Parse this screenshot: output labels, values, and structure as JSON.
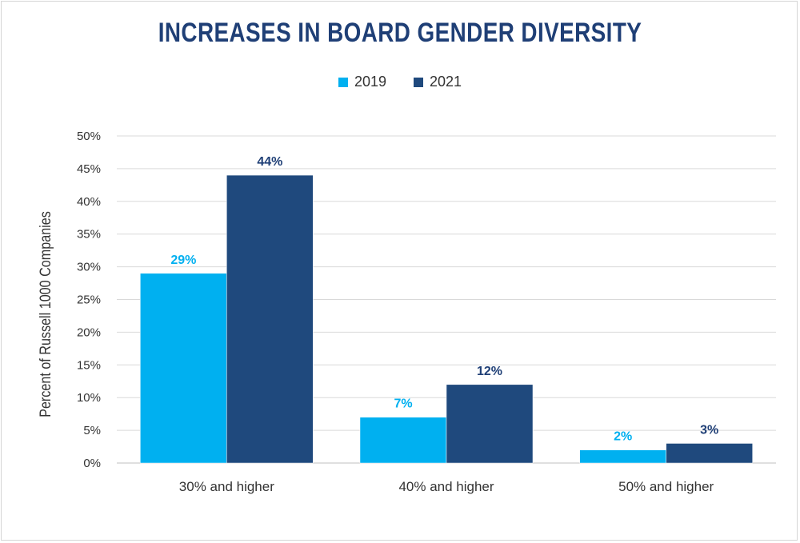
{
  "chart_data": {
    "type": "bar",
    "title": "INCREASES IN BOARD GENDER DIVERSITY",
    "ylabel": "Percent of Russell 1000 Companies",
    "xlabel": "",
    "categories": [
      "30% and higher",
      "40% and higher",
      "50% and higher"
    ],
    "series": [
      {
        "name": "2019",
        "values": [
          29,
          7,
          2
        ],
        "labels": [
          "29%",
          "7%",
          "2%"
        ],
        "color": "#00b0f0"
      },
      {
        "name": "2021",
        "values": [
          44,
          12,
          3
        ],
        "labels": [
          "44%",
          "12%",
          "3%"
        ],
        "color": "#1f497d"
      }
    ],
    "ylim": [
      0,
      50
    ],
    "yticks": [
      0,
      5,
      10,
      15,
      20,
      25,
      30,
      35,
      40,
      45,
      50
    ],
    "ytick_labels": [
      "0%",
      "5%",
      "10%",
      "15%",
      "20%",
      "25%",
      "30%",
      "35%",
      "40%",
      "45%",
      "50%"
    ],
    "grid": true,
    "legend_position": "top-center"
  },
  "colors": {
    "title": "#1f3f76",
    "grid": "#d9d9d9",
    "label_2021": "#1f3f76"
  }
}
